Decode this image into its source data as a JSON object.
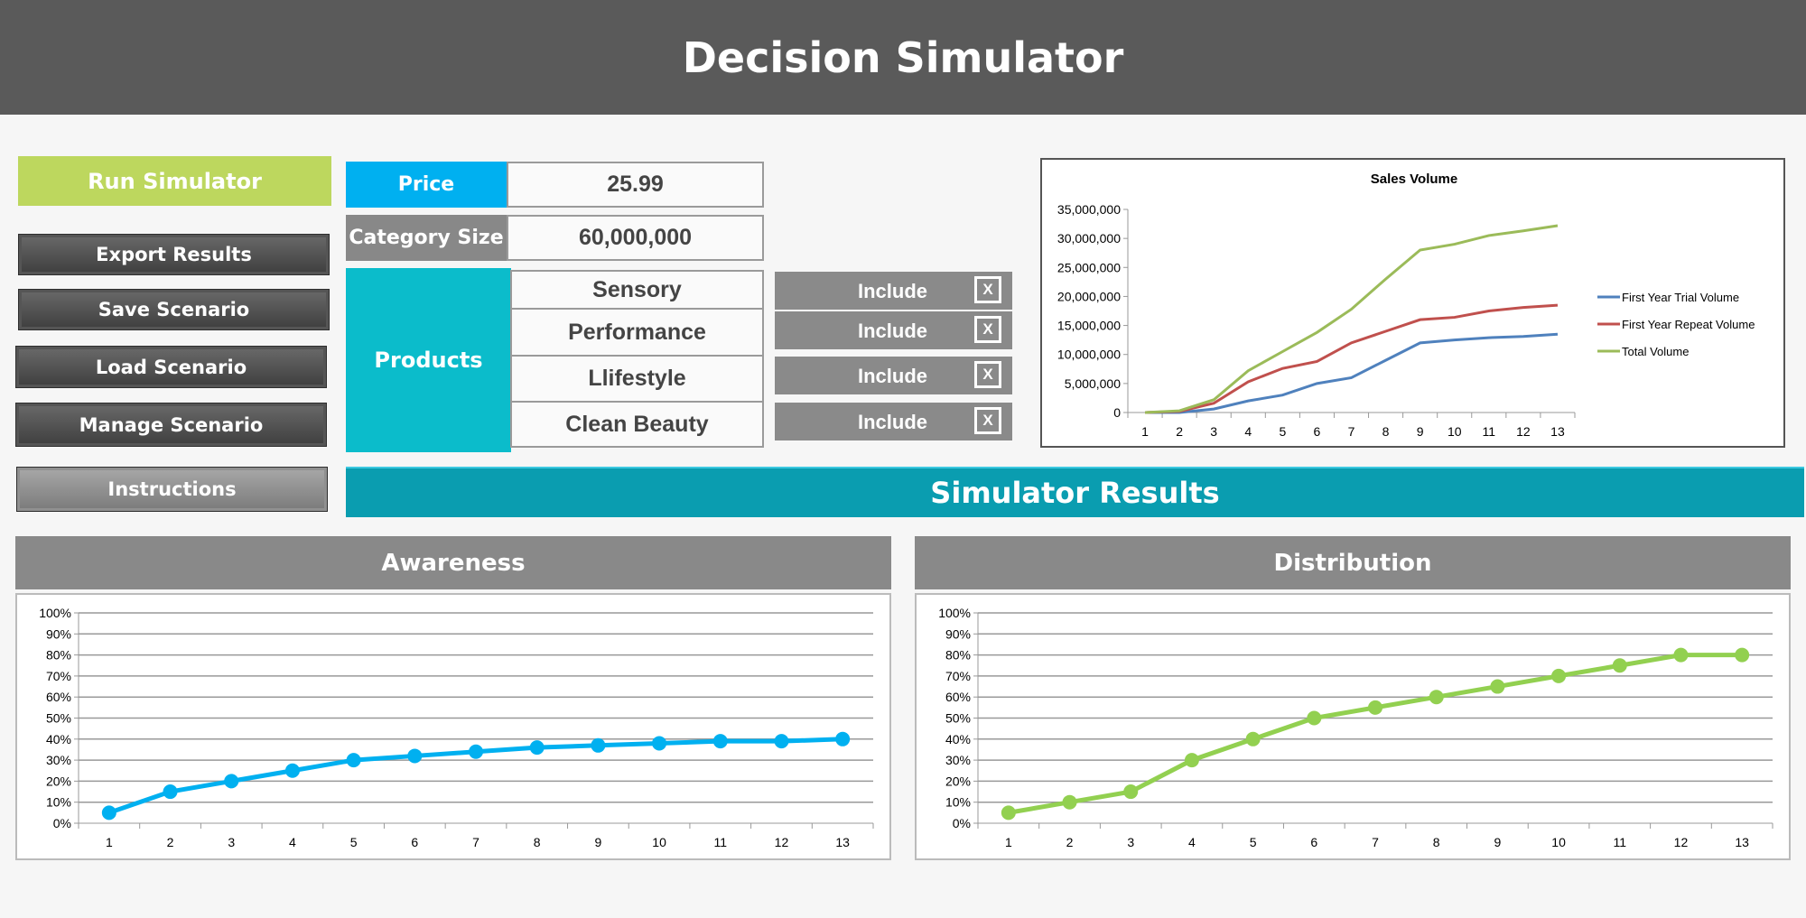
{
  "header": {
    "title": "Decision Simulator"
  },
  "buttons": {
    "run": "Run Simulator",
    "export": "Export Results",
    "save": "Save Scenario",
    "load": "Load Scenario",
    "manage": "Manage Scenario",
    "instructions": "Instructions"
  },
  "inputs": {
    "price_label": "Price",
    "price_value": "25.99",
    "category_label": "Category Size",
    "category_value": "60,000,000"
  },
  "products": {
    "label": "Products",
    "items": [
      {
        "name": "Sensory",
        "toggle": "Include",
        "mark": "X"
      },
      {
        "name": "Performance",
        "toggle": "Include",
        "mark": "X"
      },
      {
        "name": "Llifestyle",
        "toggle": "Include",
        "mark": "X"
      },
      {
        "name": "Clean Beauty",
        "toggle": "Include",
        "mark": "X"
      }
    ]
  },
  "results": {
    "title": "Simulator Results",
    "awareness_title": "Awareness",
    "distribution_title": "Distribution"
  },
  "colors": {
    "header": "#5a5a5a",
    "run": "#bdd75e",
    "price": "#00b0f0",
    "products": "#0bbccb",
    "results": "#0a9db0",
    "awareness": "#00b0f0",
    "distribution": "#92d050"
  },
  "chart_data": [
    {
      "type": "line",
      "title": "Sales Volume",
      "categories": [
        "1",
        "2",
        "3",
        "4",
        "5",
        "6",
        "7",
        "8",
        "9",
        "10",
        "11",
        "12",
        "13"
      ],
      "ylim": [
        0,
        35000000
      ],
      "yticks": [
        "0",
        "5,000,000",
        "10,000,000",
        "15,000,000",
        "20,000,000",
        "25,000,000",
        "30,000,000",
        "35,000,000"
      ],
      "legend": "right",
      "grid": false,
      "series": [
        {
          "name": "First Year Trial Volume",
          "color": "#4f81bd",
          "values": [
            0,
            0,
            600000,
            2000000,
            3000000,
            5000000,
            6000000,
            9000000,
            12000000,
            12500000,
            12900000,
            13100000,
            13500000
          ]
        },
        {
          "name": "First Year Repeat Volume",
          "color": "#c0504d",
          "values": [
            0,
            200000,
            1600000,
            5300000,
            7600000,
            8800000,
            12000000,
            14000000,
            16000000,
            16400000,
            17500000,
            18100000,
            18500000
          ]
        },
        {
          "name": "Total Volume",
          "color": "#9bbb59",
          "values": [
            0,
            300000,
            2200000,
            7200000,
            10500000,
            13800000,
            17800000,
            23000000,
            28000000,
            29000000,
            30500000,
            31300000,
            32200000
          ]
        }
      ]
    },
    {
      "type": "line",
      "title": "",
      "categories": [
        "1",
        "2",
        "3",
        "4",
        "5",
        "6",
        "7",
        "8",
        "9",
        "10",
        "11",
        "12",
        "13"
      ],
      "ylim": [
        0,
        100
      ],
      "yticks": [
        "0%",
        "10%",
        "20%",
        "30%",
        "40%",
        "50%",
        "60%",
        "70%",
        "80%",
        "90%",
        "100%"
      ],
      "grid": true,
      "series": [
        {
          "color": "#00b0f0",
          "values": [
            5,
            15,
            20,
            25,
            30,
            32,
            34,
            36,
            37,
            38,
            39,
            39,
            40
          ]
        }
      ]
    },
    {
      "type": "line",
      "title": "",
      "categories": [
        "1",
        "2",
        "3",
        "4",
        "5",
        "6",
        "7",
        "8",
        "9",
        "10",
        "11",
        "12",
        "13"
      ],
      "ylim": [
        0,
        100
      ],
      "yticks": [
        "0%",
        "10%",
        "20%",
        "30%",
        "40%",
        "50%",
        "60%",
        "70%",
        "80%",
        "90%",
        "100%"
      ],
      "grid": true,
      "series": [
        {
          "color": "#92d050",
          "values": [
            5,
            10,
            15,
            30,
            40,
            50,
            55,
            60,
            65,
            70,
            75,
            80,
            80
          ]
        }
      ]
    }
  ]
}
